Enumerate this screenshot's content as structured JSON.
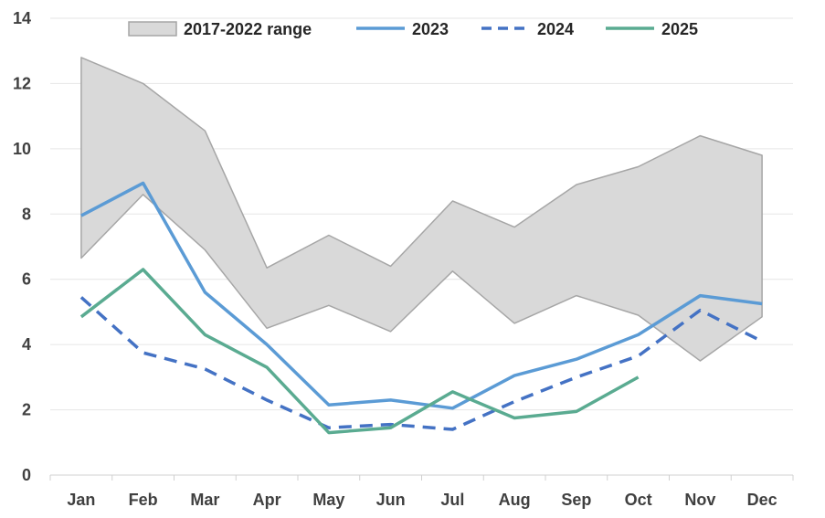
{
  "chart_data": {
    "type": "line",
    "title": "",
    "xlabel": "",
    "ylabel": "",
    "ylim": [
      0,
      14
    ],
    "yticks": [
      "0",
      "2",
      "4",
      "6",
      "8",
      "10",
      "12",
      "14"
    ],
    "categories": [
      "Jan",
      "Feb",
      "Mar",
      "Apr",
      "May",
      "Jun",
      "Jul",
      "Aug",
      "Sep",
      "Oct",
      "Nov",
      "Dec"
    ],
    "range_band": {
      "name": "2017-2022 range",
      "min": [
        6.65,
        8.6,
        6.9,
        4.5,
        5.2,
        4.4,
        6.25,
        4.65,
        5.5,
        4.9,
        3.5,
        4.85
      ],
      "max": [
        12.8,
        12.0,
        10.55,
        6.35,
        7.35,
        6.4,
        8.4,
        7.6,
        8.9,
        9.45,
        10.4,
        9.8
      ],
      "color": "#d9d9d9",
      "stroke": "#a6a6a6"
    },
    "series": [
      {
        "name": "2023",
        "values": [
          7.95,
          8.95,
          5.6,
          4.0,
          2.15,
          2.3,
          2.05,
          3.05,
          3.55,
          4.3,
          5.5,
          5.25
        ],
        "color": "#5b9bd5",
        "dash": "solid"
      },
      {
        "name": "2024",
        "values": [
          5.45,
          3.75,
          3.25,
          2.3,
          1.45,
          1.55,
          1.4,
          2.25,
          3.0,
          3.65,
          5.05,
          4.1
        ],
        "color": "#4472c4",
        "dash": "dashed"
      },
      {
        "name": "2025",
        "values": [
          4.85,
          6.3,
          4.3,
          3.3,
          1.3,
          1.45,
          2.55,
          1.75,
          1.95,
          3.0,
          null,
          null
        ],
        "color": "#5aab91",
        "dash": "solid"
      }
    ],
    "legend_position": "top",
    "grid": true
  }
}
